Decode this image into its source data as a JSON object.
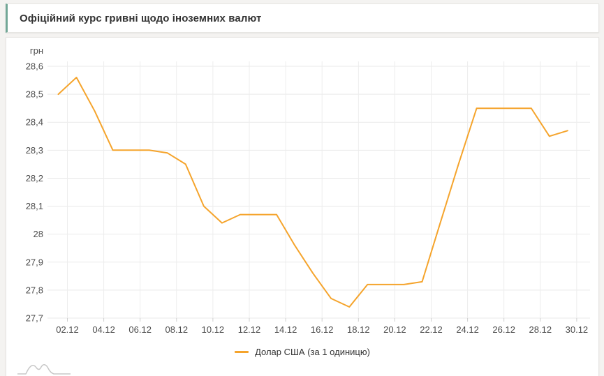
{
  "header": {
    "title": "Офіційний курс гривні щодо іноземних валют",
    "accent_color": "#72a796"
  },
  "chart_data": {
    "type": "line",
    "title": "Офіційний курс гривні щодо іноземних валют",
    "y_unit_label": "грн",
    "ylim": [
      27.7,
      28.6
    ],
    "y_tick_labels": [
      "28,6",
      "28,5",
      "28,4",
      "28,3",
      "28,2",
      "28,1",
      "28",
      "27,9",
      "27,8",
      "27,7"
    ],
    "x_tick_labels": [
      "02.12",
      "04.12",
      "06.12",
      "08.12",
      "10.12",
      "12.12",
      "14.12",
      "16.12",
      "18.12",
      "20.12",
      "22.12",
      "24.12",
      "26.12",
      "28.12",
      "30.12"
    ],
    "grid": true,
    "legend_position": "bottom",
    "series": [
      {
        "name": "Долар США (за 1 одиницю)",
        "color": "#f5a42c",
        "x": [
          "01.12",
          "02.12",
          "03.12",
          "04.12",
          "05.12",
          "06.12",
          "07.12",
          "08.12",
          "09.12",
          "10.12",
          "11.12",
          "12.12",
          "13.12",
          "14.12",
          "15.12",
          "16.12",
          "17.12",
          "18.12",
          "19.12",
          "20.12",
          "21.12",
          "22.12",
          "23.12",
          "24.12",
          "25.12",
          "26.12",
          "27.12",
          "28.12",
          "29.12"
        ],
        "values": [
          28.5,
          28.56,
          28.44,
          28.3,
          28.3,
          28.3,
          28.29,
          28.25,
          28.1,
          28.04,
          28.07,
          28.07,
          28.07,
          27.96,
          27.86,
          27.77,
          27.74,
          27.82,
          27.82,
          27.82,
          27.83,
          28.04,
          28.25,
          28.45,
          28.45,
          28.45,
          28.45,
          28.35,
          28.37
        ]
      }
    ],
    "grid_color": "#e9e9e9",
    "axis_text_color": "#4c4c4c"
  }
}
